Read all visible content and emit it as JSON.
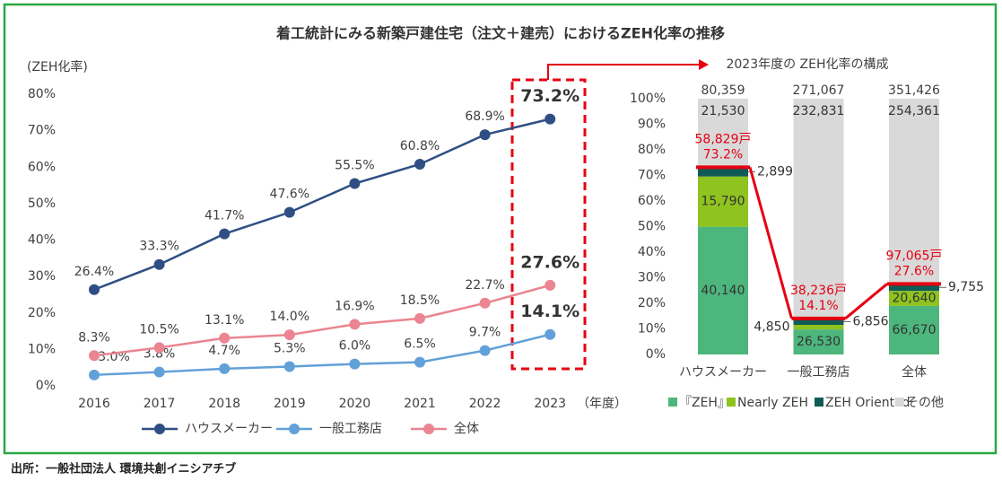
{
  "title": "着工統計にみる新築戸建住宅（注文＋建売）におけるZEH化率の推移",
  "source": "出所：一般社団法人 環境共創イニシアチブ",
  "chart_data": [
    {
      "type": "line",
      "y_label": "(ZEH化率)",
      "x_label": "（年度）",
      "categories": [
        "2016",
        "2017",
        "2018",
        "2019",
        "2020",
        "2021",
        "2022",
        "2023"
      ],
      "series": [
        {
          "name": "ハウスメーカー",
          "color": "#2f4f84",
          "values": [
            26.4,
            33.3,
            41.7,
            47.6,
            55.5,
            60.8,
            68.9,
            73.2
          ],
          "value_labels": [
            "26.4%",
            "33.3%",
            "41.7%",
            "47.6%",
            "55.5%",
            "60.8%",
            "68.9%",
            "73.2%"
          ]
        },
        {
          "name": "一般工務店",
          "color": "#62a0d8",
          "values": [
            3.0,
            3.8,
            4.7,
            5.3,
            6.0,
            6.5,
            9.7,
            14.1
          ],
          "value_labels": [
            "3.0%",
            "3.8%",
            "4.7%",
            "5.3%",
            "6.0%",
            "6.5%",
            "9.7%",
            "14.1%"
          ]
        },
        {
          "name": "全体",
          "color": "#ea8591",
          "values": [
            8.3,
            10.5,
            13.1,
            14.0,
            16.9,
            18.5,
            22.7,
            27.6
          ],
          "value_labels": [
            "8.3%",
            "10.5%",
            "13.1%",
            "14.0%",
            "16.9%",
            "18.5%",
            "22.7%",
            "27.6%"
          ]
        }
      ],
      "ylim": [
        0,
        80
      ],
      "yticks": [
        {
          "value": 0,
          "label": "0%"
        },
        {
          "value": 10,
          "label": "10%"
        },
        {
          "value": 20,
          "label": "20%"
        },
        {
          "value": 30,
          "label": "30%"
        },
        {
          "value": 40,
          "label": "40%"
        },
        {
          "value": 50,
          "label": "50%"
        },
        {
          "value": 60,
          "label": "60%"
        },
        {
          "value": 70,
          "label": "70%"
        },
        {
          "value": 80,
          "label": "80%"
        }
      ],
      "grid": false,
      "legend": "bottom"
    },
    {
      "type": "stacked_percent_bar",
      "title": "2023年度の ZEH化率の構成",
      "categories": [
        "ハウスメーカー",
        "一般工務店",
        "全体"
      ],
      "series": [
        {
          "name": "『ZEH』",
          "color": "#4db67c",
          "values": [
            40140,
            26530,
            66670
          ],
          "value_labels": [
            "40,140",
            "26,530",
            "66,670"
          ]
        },
        {
          "name": "Nearly ZEH",
          "color": "#8fc31f",
          "values": [
            15790,
            4850,
            20640
          ],
          "value_labels": [
            "15,790",
            "4,850",
            "20,640"
          ]
        },
        {
          "name": "ZEH Oriented",
          "color": "#0e5c55",
          "values": [
            2899,
            6856,
            9755
          ],
          "value_labels": [
            "2,899",
            "6,856",
            "9,755"
          ]
        },
        {
          "name": "その他",
          "color": "#d9d9d9",
          "values": [
            21530,
            232831,
            254361
          ],
          "value_labels": [
            "21,530",
            "232,831",
            "254,361"
          ]
        }
      ],
      "totals": {
        "values": [
          80359,
          271067,
          351426
        ],
        "value_labels": [
          "80,359",
          "271,067",
          "351,426"
        ]
      },
      "zeh_totals": {
        "values": [
          58829,
          38236,
          97065
        ],
        "value_labels": [
          "58,829戸",
          "38,236戸",
          "97,065戸"
        ]
      },
      "zeh_rates": {
        "values": [
          73.2,
          14.1,
          27.6
        ],
        "value_labels": [
          "73.2%",
          "14.1%",
          "27.6%"
        ]
      },
      "ylim": [
        0,
        100
      ],
      "yticks": [
        {
          "value": 0,
          "label": "0%"
        },
        {
          "value": 10,
          "label": "10%"
        },
        {
          "value": 20,
          "label": "20%"
        },
        {
          "value": 30,
          "label": "30%"
        },
        {
          "value": 40,
          "label": "40%"
        },
        {
          "value": 50,
          "label": "50%"
        },
        {
          "value": 60,
          "label": "60%"
        },
        {
          "value": 70,
          "label": "70%"
        },
        {
          "value": 80,
          "label": "80%"
        },
        {
          "value": 90,
          "label": "90%"
        },
        {
          "value": 100,
          "label": "100%"
        }
      ],
      "grid": false,
      "legend": "bottom"
    }
  ]
}
